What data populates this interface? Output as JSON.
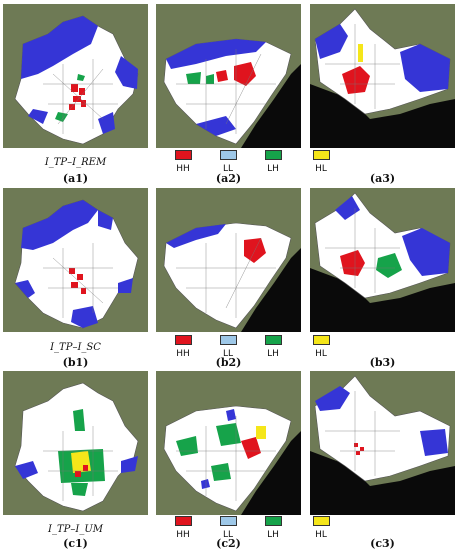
{
  "colors": {
    "HH": "#e0141e",
    "LL": "#9ec8e8",
    "LH": "#16a34a",
    "HL": "#f5e61a",
    "cold": "#3535d6",
    "map_fill": "#ffffff",
    "satellite": "#6e7a55",
    "sea": "#0a0a0a"
  },
  "rows": [
    {
      "formula": "I_TP–I_REM",
      "captions": [
        "(a1)",
        "(a2)",
        "(a3)"
      ],
      "legend": [
        {
          "key": "HH",
          "label": "HH"
        },
        {
          "key": "LL",
          "label": "LL"
        },
        {
          "key": "LH",
          "label": "LH"
        },
        {
          "key": "HL",
          "label": "HL"
        }
      ]
    },
    {
      "formula": "I_TP–I_SC",
      "captions": [
        "(b1)",
        "(b2)",
        "(b3)"
      ],
      "legend": [
        {
          "key": "HH",
          "label": "HH"
        },
        {
          "key": "LL",
          "label": "LL"
        },
        {
          "key": "LH",
          "label": "LH"
        },
        {
          "key": "HL",
          "label": "HL"
        }
      ]
    },
    {
      "formula": "I_TP–I_UM",
      "captions": [
        "(c1)",
        "(c2)",
        "(c3)"
      ],
      "legend": [
        {
          "key": "HH",
          "label": "HH"
        },
        {
          "key": "LL",
          "label": "LL"
        },
        {
          "key": "LH",
          "label": "LH"
        },
        {
          "key": "HL",
          "label": "HL"
        }
      ]
    }
  ]
}
